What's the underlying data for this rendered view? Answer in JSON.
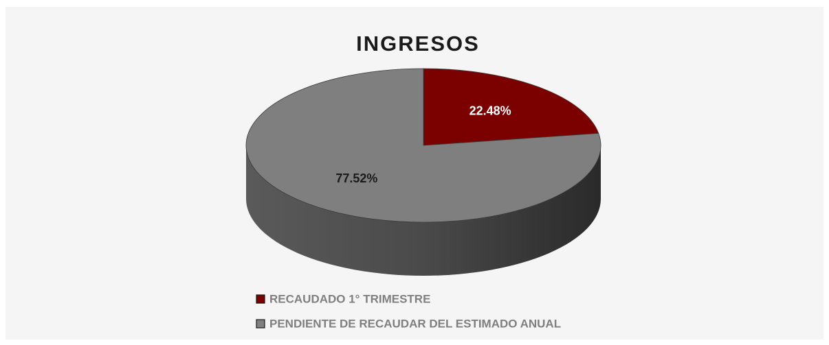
{
  "chart_data": {
    "type": "pie",
    "title": "INGRESOS",
    "categories": [
      "RECAUDADO 1° TRIMESTRE",
      "PENDIENTE DE RECAUDAR DEL ESTIMADO ANUAL"
    ],
    "values": [
      22.48,
      77.52
    ],
    "value_labels": [
      "22.48%",
      "77.52%"
    ],
    "colors": [
      "#7b0000",
      "#7f7f7f"
    ]
  }
}
